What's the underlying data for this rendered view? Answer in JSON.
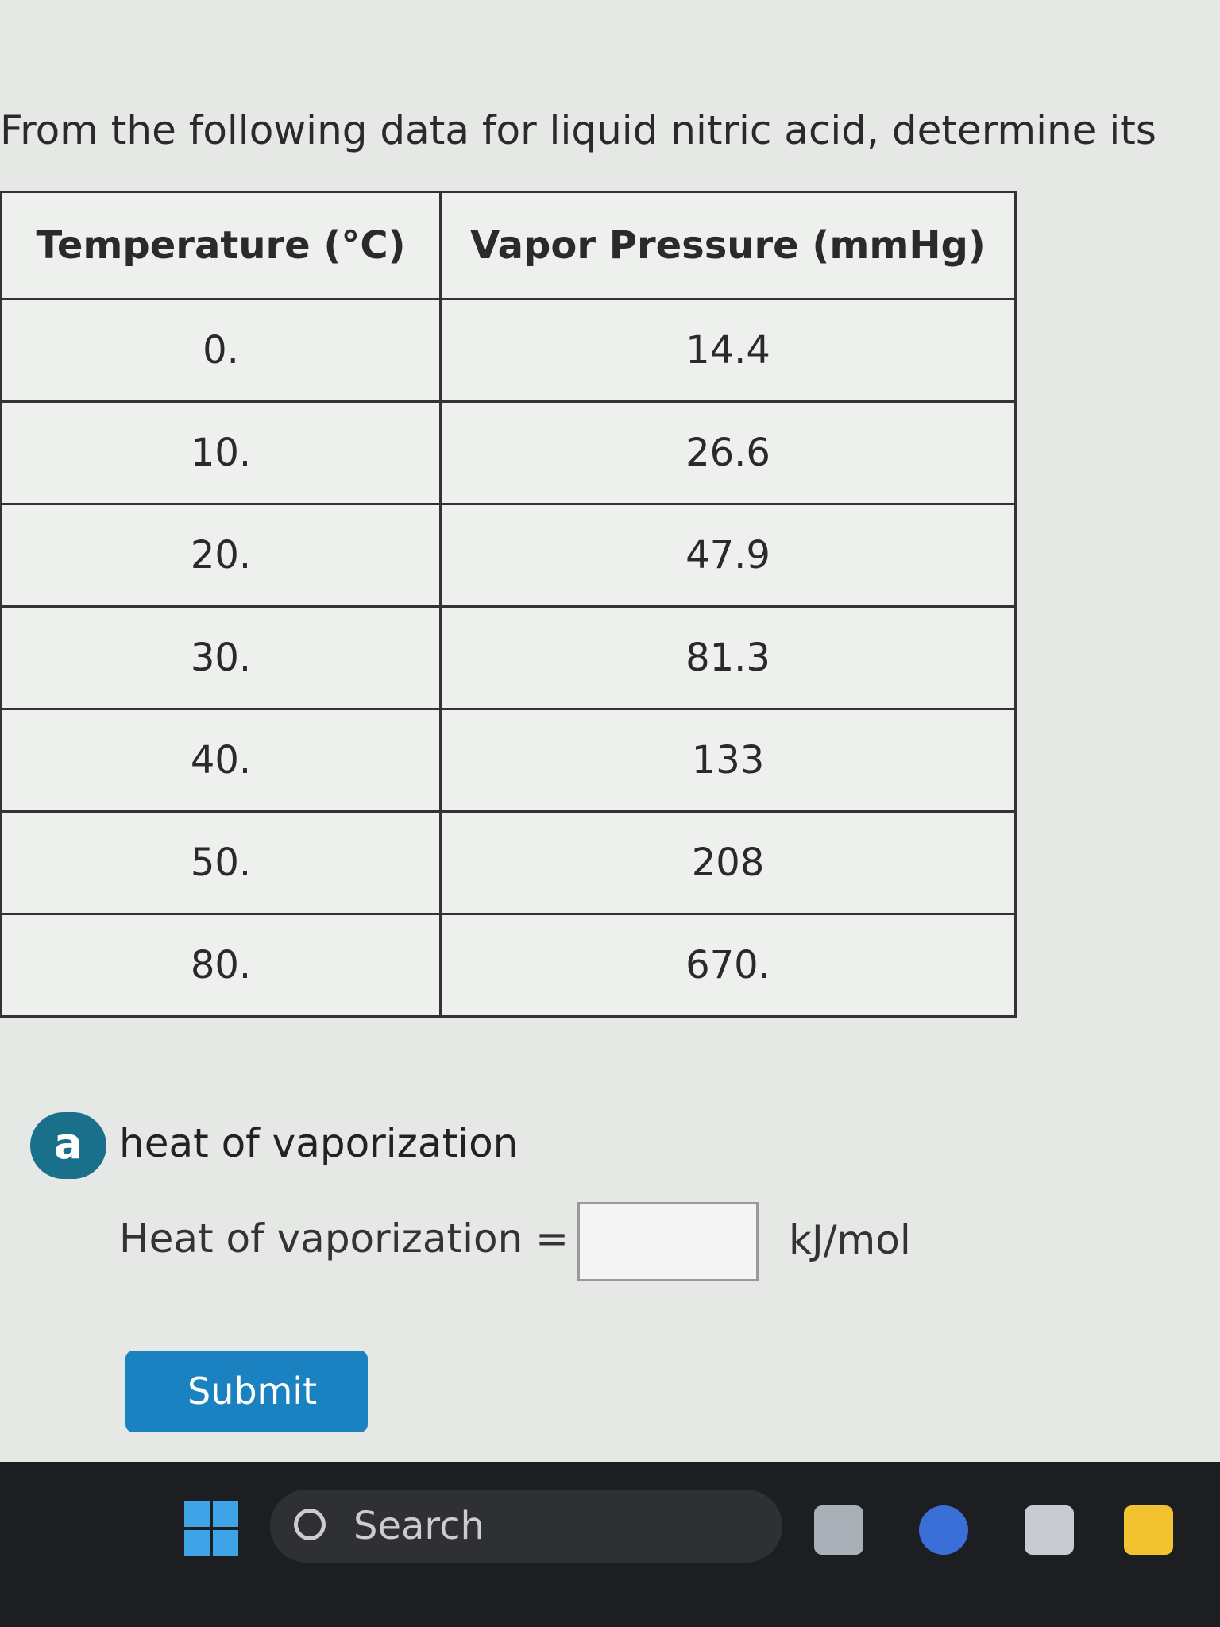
{
  "question": {
    "text": "From the following data for liquid nitric acid, determine its"
  },
  "table": {
    "headers": [
      "Temperature (°C)",
      "Vapor Pressure (mmHg)"
    ],
    "rows": [
      [
        "0.",
        "14.4"
      ],
      [
        "10.",
        "26.6"
      ],
      [
        "20.",
        "47.9"
      ],
      [
        "30.",
        "81.3"
      ],
      [
        "40.",
        "133"
      ],
      [
        "50.",
        "208"
      ],
      [
        "80.",
        "670."
      ]
    ]
  },
  "part": {
    "letter": "a",
    "title": "heat of vaporization",
    "input_label": "Heat of vaporization =",
    "unit": "kJ/mol",
    "button": "Submit"
  },
  "taskbar": {
    "search": "Search"
  }
}
